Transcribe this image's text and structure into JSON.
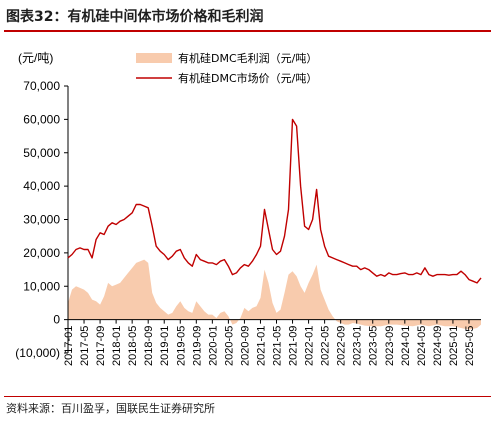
{
  "figure": {
    "title": "图表32：有机硅中间体市场价格和毛利润",
    "source": "资料来源：百川盈孚，国联民生证券研究所"
  },
  "chart_data": {
    "type": "line",
    "unit_label": "(元/吨)",
    "ylim": [
      -10000,
      70000
    ],
    "y_ticks": [
      -10000,
      0,
      10000,
      20000,
      30000,
      40000,
      50000,
      60000,
      70000
    ],
    "y_tick_labels": [
      "(10,000)",
      "0",
      "10,000",
      "20,000",
      "30,000",
      "40,000",
      "50,000",
      "60,000",
      "70,000"
    ],
    "x_range": [
      "2017-01",
      "2025-08"
    ],
    "x_tick_labels": [
      "2017-01",
      "2017-05",
      "2017-09",
      "2018-01",
      "2018-05",
      "2018-09",
      "2019-01",
      "2019-05",
      "2019-09",
      "2020-01",
      "2020-05",
      "2020-09",
      "2021-01",
      "2021-05",
      "2021-09",
      "2022-01",
      "2022-05",
      "2022-09",
      "2023-01",
      "2023-05",
      "2023-09",
      "2024-01",
      "2024-05",
      "2024-09",
      "2025-01",
      "2025-05"
    ],
    "grid": false,
    "legend_position": "top-right",
    "series": [
      {
        "name": "有机硅DMC毛利润（元/吨）",
        "type": "area",
        "color": "#f8cbad",
        "points": [
          [
            "2017-01",
            5000
          ],
          [
            "2017-02",
            9000
          ],
          [
            "2017-03",
            10000
          ],
          [
            "2017-04",
            9500
          ],
          [
            "2017-05",
            9000
          ],
          [
            "2017-06",
            8000
          ],
          [
            "2017-07",
            6000
          ],
          [
            "2017-08",
            5500
          ],
          [
            "2017-09",
            4500
          ],
          [
            "2017-10",
            7000
          ],
          [
            "2017-11",
            11000
          ],
          [
            "2017-12",
            10000
          ],
          [
            "2018-01",
            10500
          ],
          [
            "2018-02",
            11000
          ],
          [
            "2018-03",
            12500
          ],
          [
            "2018-04",
            14000
          ],
          [
            "2018-05",
            15500
          ],
          [
            "2018-06",
            17000
          ],
          [
            "2018-07",
            17500
          ],
          [
            "2018-08",
            18000
          ],
          [
            "2018-09",
            17000
          ],
          [
            "2018-10",
            8000
          ],
          [
            "2018-11",
            5000
          ],
          [
            "2018-12",
            3500
          ],
          [
            "2019-01",
            2500
          ],
          [
            "2019-02",
            1500
          ],
          [
            "2019-03",
            2000
          ],
          [
            "2019-04",
            4000
          ],
          [
            "2019-05",
            5500
          ],
          [
            "2019-06",
            3500
          ],
          [
            "2019-07",
            2500
          ],
          [
            "2019-08",
            2000
          ],
          [
            "2019-09",
            5500
          ],
          [
            "2019-10",
            4000
          ],
          [
            "2019-11",
            2500
          ],
          [
            "2019-12",
            1500
          ],
          [
            "2020-01",
            1500
          ],
          [
            "2020-02",
            500
          ],
          [
            "2020-03",
            2000
          ],
          [
            "2020-04",
            2500
          ],
          [
            "2020-05",
            1000
          ],
          [
            "2020-06",
            -1500
          ],
          [
            "2020-07",
            -1000
          ],
          [
            "2020-08",
            500
          ],
          [
            "2020-09",
            3500
          ],
          [
            "2020-10",
            2500
          ],
          [
            "2020-11",
            3500
          ],
          [
            "2020-12",
            4000
          ],
          [
            "2021-01",
            6500
          ],
          [
            "2021-02",
            15000
          ],
          [
            "2021-03",
            11000
          ],
          [
            "2021-04",
            5000
          ],
          [
            "2021-05",
            2000
          ],
          [
            "2021-06",
            3000
          ],
          [
            "2021-07",
            8000
          ],
          [
            "2021-08",
            13500
          ],
          [
            "2021-09",
            14500
          ],
          [
            "2021-10",
            13000
          ],
          [
            "2021-11",
            10000
          ],
          [
            "2021-12",
            8000
          ],
          [
            "2022-01",
            11000
          ],
          [
            "2022-02",
            13500
          ],
          [
            "2022-03",
            16500
          ],
          [
            "2022-04",
            9000
          ],
          [
            "2022-05",
            6000
          ],
          [
            "2022-06",
            3000
          ],
          [
            "2022-07",
            1000
          ],
          [
            "2022-08",
            -500
          ],
          [
            "2022-09",
            -1000
          ],
          [
            "2022-10",
            -1500
          ],
          [
            "2022-11",
            -1500
          ],
          [
            "2022-12",
            -1000
          ],
          [
            "2023-01",
            -1200
          ],
          [
            "2023-03",
            -1800
          ],
          [
            "2023-05",
            -2000
          ],
          [
            "2023-07",
            -2000
          ],
          [
            "2023-09",
            -1500
          ],
          [
            "2023-11",
            -1500
          ],
          [
            "2024-01",
            -1800
          ],
          [
            "2024-03",
            -2000
          ],
          [
            "2024-05",
            -1500
          ],
          [
            "2024-07",
            -2000
          ],
          [
            "2024-09",
            -1500
          ],
          [
            "2024-11",
            -2000
          ],
          [
            "2025-01",
            -2000
          ],
          [
            "2025-03",
            -2500
          ],
          [
            "2025-05",
            -3000
          ],
          [
            "2025-07",
            -2500
          ],
          [
            "2025-08",
            -1500
          ]
        ]
      },
      {
        "name": "有机硅DMC市场价（元/吨）",
        "type": "line",
        "color": "#c00000",
        "points": [
          [
            "2017-01",
            18500
          ],
          [
            "2017-02",
            19500
          ],
          [
            "2017-03",
            21000
          ],
          [
            "2017-04",
            21500
          ],
          [
            "2017-05",
            21000
          ],
          [
            "2017-06",
            21000
          ],
          [
            "2017-07",
            18500
          ],
          [
            "2017-08",
            24000
          ],
          [
            "2017-09",
            26000
          ],
          [
            "2017-10",
            25500
          ],
          [
            "2017-11",
            28000
          ],
          [
            "2017-12",
            29000
          ],
          [
            "2018-01",
            28500
          ],
          [
            "2018-02",
            29500
          ],
          [
            "2018-03",
            30000
          ],
          [
            "2018-04",
            31000
          ],
          [
            "2018-05",
            32000
          ],
          [
            "2018-06",
            34500
          ],
          [
            "2018-07",
            34500
          ],
          [
            "2018-08",
            34000
          ],
          [
            "2018-09",
            33500
          ],
          [
            "2018-10",
            28000
          ],
          [
            "2018-11",
            22000
          ],
          [
            "2018-12",
            20500
          ],
          [
            "2019-01",
            19500
          ],
          [
            "2019-02",
            18000
          ],
          [
            "2019-03",
            19000
          ],
          [
            "2019-04",
            20500
          ],
          [
            "2019-05",
            21000
          ],
          [
            "2019-06",
            18500
          ],
          [
            "2019-07",
            17000
          ],
          [
            "2019-08",
            16000
          ],
          [
            "2019-09",
            19500
          ],
          [
            "2019-10",
            18000
          ],
          [
            "2019-11",
            17500
          ],
          [
            "2019-12",
            17000
          ],
          [
            "2020-01",
            17000
          ],
          [
            "2020-02",
            16500
          ],
          [
            "2020-03",
            17500
          ],
          [
            "2020-04",
            18000
          ],
          [
            "2020-05",
            16000
          ],
          [
            "2020-06",
            13500
          ],
          [
            "2020-07",
            14000
          ],
          [
            "2020-08",
            15500
          ],
          [
            "2020-09",
            16500
          ],
          [
            "2020-10",
            16000
          ],
          [
            "2020-11",
            17500
          ],
          [
            "2020-12",
            19500
          ],
          [
            "2021-01",
            22000
          ],
          [
            "2021-02",
            33000
          ],
          [
            "2021-03",
            27000
          ],
          [
            "2021-04",
            21000
          ],
          [
            "2021-05",
            19500
          ],
          [
            "2021-06",
            20500
          ],
          [
            "2021-07",
            25000
          ],
          [
            "2021-08",
            33000
          ],
          [
            "2021-09",
            60000
          ],
          [
            "2021-10",
            58000
          ],
          [
            "2021-11",
            40000
          ],
          [
            "2021-12",
            28000
          ],
          [
            "2022-01",
            27000
          ],
          [
            "2022-02",
            30000
          ],
          [
            "2022-03",
            39000
          ],
          [
            "2022-04",
            27000
          ],
          [
            "2022-05",
            22000
          ],
          [
            "2022-06",
            19000
          ],
          [
            "2022-07",
            18500
          ],
          [
            "2022-08",
            18000
          ],
          [
            "2022-09",
            17500
          ],
          [
            "2022-10",
            17000
          ],
          [
            "2022-11",
            16500
          ],
          [
            "2022-12",
            16000
          ],
          [
            "2023-01",
            16000
          ],
          [
            "2023-02",
            15000
          ],
          [
            "2023-03",
            15500
          ],
          [
            "2023-04",
            15000
          ],
          [
            "2023-05",
            14000
          ],
          [
            "2023-06",
            13000
          ],
          [
            "2023-07",
            13500
          ],
          [
            "2023-08",
            13000
          ],
          [
            "2023-09",
            14000
          ],
          [
            "2023-10",
            13500
          ],
          [
            "2023-11",
            13500
          ],
          [
            "2023-12",
            13800
          ],
          [
            "2024-01",
            14000
          ],
          [
            "2024-02",
            13500
          ],
          [
            "2024-03",
            13500
          ],
          [
            "2024-04",
            14000
          ],
          [
            "2024-05",
            13500
          ],
          [
            "2024-06",
            15500
          ],
          [
            "2024-07",
            13500
          ],
          [
            "2024-08",
            13000
          ],
          [
            "2024-09",
            13500
          ],
          [
            "2024-10",
            13500
          ],
          [
            "2024-11",
            13500
          ],
          [
            "2024-12",
            13300
          ],
          [
            "2025-01",
            13500
          ],
          [
            "2025-02",
            13500
          ],
          [
            "2025-03",
            14500
          ],
          [
            "2025-04",
            13500
          ],
          [
            "2025-05",
            12000
          ],
          [
            "2025-06",
            11500
          ],
          [
            "2025-07",
            11000
          ],
          [
            "2025-08",
            12500
          ]
        ]
      }
    ]
  }
}
